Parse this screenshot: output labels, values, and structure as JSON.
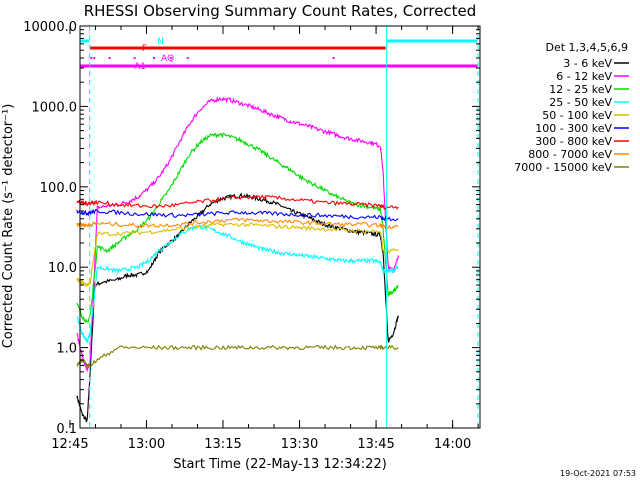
{
  "chart_data": {
    "type": "line",
    "title": "RHESSI Observing Summary Count Rates, Corrected",
    "xlabel": "Start Time (22-May-13 12:34:22)",
    "ylabel": "Corrected Count Rate (s⁻¹ detector⁻¹)",
    "yscale": "log",
    "ylim": [
      0.1,
      10000
    ],
    "xlim_minutes": [
      12.6,
      91.0
    ],
    "y_ticks": [
      "0.1",
      "1.0",
      "10.0",
      "100.0",
      "1000.0",
      "10000.0"
    ],
    "x_ticks": [
      {
        "label": "12:45",
        "minute": 10.63
      },
      {
        "label": "13:00",
        "minute": 25.63
      },
      {
        "label": "13:15",
        "minute": 40.63
      },
      {
        "label": "13:30",
        "minute": 55.63
      },
      {
        "label": "13:45",
        "minute": 70.63
      },
      {
        "label": "14:00",
        "minute": 85.63
      }
    ],
    "legend_header": "Det 1,3,4,5,6,9",
    "series": [
      {
        "name": "3 - 6 keV",
        "color": "#000000",
        "x": [
          12.0,
          13.0,
          14.0,
          14.6,
          15.5,
          17,
          20,
          22,
          24,
          26,
          28,
          30,
          32,
          34,
          36,
          38,
          40,
          42,
          44,
          46,
          48,
          50,
          52,
          54,
          56,
          58,
          60,
          62,
          64,
          66,
          68,
          70,
          71.5,
          72.0,
          73,
          74,
          75
        ],
        "y": [
          0.25,
          0.15,
          0.12,
          0.5,
          6,
          6.5,
          7,
          8,
          8,
          9,
          15,
          20,
          25,
          35,
          45,
          60,
          70,
          75,
          78,
          75,
          70,
          65,
          58,
          50,
          45,
          40,
          35,
          32,
          30,
          28,
          27,
          26,
          25,
          15,
          1.2,
          1.5,
          2.5
        ]
      },
      {
        "name": "6 - 12 keV",
        "color": "#ff00ff",
        "x": [
          12.0,
          13.0,
          14.0,
          14.6,
          16,
          18,
          20,
          22,
          24,
          26,
          28,
          30,
          32,
          34,
          36,
          38,
          40,
          42,
          44,
          46,
          48,
          50,
          52,
          54,
          56,
          58,
          60,
          62,
          64,
          66,
          68,
          70,
          71.5,
          72.0,
          73,
          74,
          75
        ],
        "y": [
          1.5,
          0.8,
          0.5,
          0.7,
          55,
          58,
          60,
          65,
          75,
          95,
          130,
          200,
          350,
          600,
          900,
          1150,
          1250,
          1200,
          1100,
          1000,
          900,
          800,
          720,
          650,
          600,
          550,
          500,
          460,
          420,
          390,
          370,
          350,
          320,
          150,
          10,
          9,
          14
        ]
      },
      {
        "name": "12 - 25 keV",
        "color": "#00dd00",
        "x": [
          12.0,
          13.0,
          14.0,
          14.6,
          16,
          18,
          20,
          22,
          24,
          26,
          28,
          30,
          32,
          34,
          36,
          38,
          40,
          42,
          44,
          46,
          48,
          50,
          52,
          54,
          56,
          58,
          60,
          62,
          64,
          66,
          68,
          70,
          71.5,
          72.0,
          73,
          74,
          75
        ],
        "y": [
          3.5,
          2.5,
          2.0,
          2.5,
          18,
          16,
          20,
          25,
          30,
          40,
          60,
          90,
          150,
          250,
          350,
          430,
          450,
          420,
          380,
          330,
          280,
          230,
          190,
          160,
          130,
          110,
          95,
          80,
          70,
          62,
          58,
          55,
          52,
          30,
          4.5,
          5,
          6
        ]
      },
      {
        "name": "25 - 50 keV",
        "color": "#00ffff",
        "x": [
          12.0,
          13.0,
          14.0,
          14.6,
          16,
          18,
          20,
          22,
          24,
          26,
          28,
          30,
          32,
          34,
          36,
          38,
          40,
          42,
          44,
          46,
          48,
          50,
          52,
          54,
          56,
          58,
          60,
          62,
          64,
          66,
          68,
          70,
          71.5,
          72.0,
          73,
          74,
          75
        ],
        "y": [
          2.5,
          1.5,
          1.2,
          1.5,
          10,
          9.5,
          9,
          9.5,
          10,
          12,
          16,
          20,
          25,
          30,
          32,
          30,
          27,
          24,
          21,
          19,
          17,
          16,
          15,
          14.5,
          14,
          13.5,
          13,
          12.5,
          12,
          12,
          12,
          12,
          11.5,
          9,
          9,
          9,
          10
        ]
      },
      {
        "name": "50 - 100 keV",
        "color": "#ddbb00",
        "x": [
          12.0,
          13.0,
          14.0,
          14.6,
          16,
          20,
          24,
          28,
          32,
          36,
          40,
          44,
          48,
          52,
          56,
          60,
          64,
          68,
          71.5,
          72.0,
          75
        ],
        "y": [
          7,
          6.5,
          6,
          6.5,
          26,
          26,
          27,
          28,
          30,
          32,
          34,
          34,
          33,
          32,
          31,
          30,
          29,
          28,
          28,
          16,
          16
        ]
      },
      {
        "name": "100 - 300 keV",
        "color": "#0000ff",
        "x": [
          12.0,
          13.0,
          14.0,
          14.6,
          16,
          20,
          24,
          28,
          32,
          36,
          40,
          44,
          48,
          52,
          56,
          60,
          64,
          68,
          71.5,
          72.0,
          75
        ],
        "y": [
          50,
          48,
          47,
          48,
          50,
          48,
          46,
          45,
          44,
          45,
          47,
          48,
          47,
          46,
          45,
          44,
          43,
          42,
          42,
          40,
          40
        ]
      },
      {
        "name": "300 - 800 keV",
        "color": "#ff0000",
        "x": [
          12.0,
          13.0,
          14.0,
          14.6,
          16,
          20,
          24,
          28,
          32,
          36,
          40,
          44,
          48,
          52,
          56,
          60,
          64,
          68,
          71.5,
          72.0,
          75
        ],
        "y": [
          65,
          63,
          62,
          63,
          64,
          60,
          58,
          57,
          60,
          65,
          70,
          74,
          75,
          72,
          68,
          64,
          62,
          60,
          58,
          56,
          56
        ]
      },
      {
        "name": "800 - 7000 keV",
        "color": "#ff8800",
        "x": [
          12.0,
          13.0,
          14.0,
          14.6,
          16,
          20,
          24,
          28,
          32,
          36,
          40,
          44,
          48,
          52,
          56,
          60,
          64,
          68,
          71.5,
          72.0,
          75
        ],
        "y": [
          35,
          34,
          33,
          34,
          35,
          34,
          33,
          33,
          34,
          36,
          38,
          39,
          38,
          37,
          36,
          35,
          34,
          34,
          33,
          32,
          32
        ]
      },
      {
        "name": "7000 - 15000 keV",
        "color": "#808000",
        "x": [
          12.0,
          13.0,
          14.0,
          14.6,
          16,
          20,
          24,
          28,
          32,
          36,
          40,
          44,
          48,
          52,
          56,
          60,
          64,
          68,
          71.5,
          72.0,
          75
        ],
        "y": [
          0.6,
          0.7,
          0.6,
          0.6,
          0.7,
          1.0,
          1.0,
          1.0,
          1.0,
          1.0,
          1.0,
          1.0,
          1.0,
          1.0,
          1.0,
          1.0,
          1.0,
          1.0,
          1.0,
          1.0,
          1.0
        ]
      }
    ],
    "status_flags": [
      {
        "label": "N",
        "color": "#00ffff",
        "intervals": [
          [
            0,
            14.4
          ],
          [
            72.8,
            90.5
          ]
        ]
      },
      {
        "label": "F",
        "color": "#ff0000",
        "intervals": [
          [
            14.6,
            72.5
          ]
        ]
      },
      {
        "label": "AQ",
        "color": "#ff00ff",
        "intervals": [],
        "markers": [
          14.8,
          15.4,
          18.4,
          23.3,
          27.1,
          30.4,
          33.7,
          62.3
        ]
      },
      {
        "label": "A1",
        "color": "#ff00ff",
        "intervals": [
          [
            0,
            90.5
          ]
        ]
      }
    ],
    "vertical_lines": [
      {
        "minute": 14.5,
        "color": "#00ffff",
        "style": "dashed"
      },
      {
        "minute": 72.7,
        "color": "#00ffff",
        "style": "solid"
      },
      {
        "minute": 90.6,
        "color": "#00ffff",
        "style": "dashed"
      },
      {
        "minute": 12.6,
        "color": "#00ffff",
        "style": "solid"
      }
    ]
  },
  "footer": {
    "timestamp": "19-Oct-2021 07:53"
  }
}
